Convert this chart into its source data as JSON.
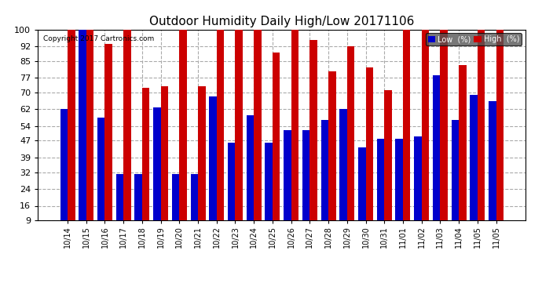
{
  "title": "Outdoor Humidity Daily High/Low 20171106",
  "copyright": "Copyright 2017 Cartronics.com",
  "categories": [
    "10/14",
    "10/15",
    "10/16",
    "10/17",
    "10/18",
    "10/19",
    "10/20",
    "10/21",
    "10/22",
    "10/23",
    "10/24",
    "10/25",
    "10/26",
    "10/27",
    "10/28",
    "10/29",
    "10/30",
    "10/31",
    "11/01",
    "11/02",
    "11/03",
    "11/04",
    "11/05",
    "11/05"
  ],
  "low_values": [
    62,
    100,
    58,
    31,
    31,
    63,
    31,
    31,
    68,
    46,
    59,
    46,
    52,
    52,
    57,
    62,
    44,
    48,
    48,
    49,
    78,
    57,
    69,
    66
  ],
  "high_values": [
    100,
    100,
    93,
    100,
    72,
    73,
    100,
    73,
    100,
    100,
    100,
    89,
    100,
    95,
    80,
    92,
    82,
    71,
    100,
    100,
    100,
    83,
    100,
    100
  ],
  "low_color": "#0000cc",
  "high_color": "#cc0000",
  "bg_color": "#ffffff",
  "grid_color": "#aaaaaa",
  "yticks": [
    9,
    16,
    24,
    32,
    39,
    47,
    54,
    62,
    70,
    77,
    85,
    92,
    100
  ],
  "ymin": 9,
  "ymax": 100,
  "bar_bottom": 9,
  "legend_low_label": "Low  (%)",
  "legend_high_label": "High  (%)"
}
